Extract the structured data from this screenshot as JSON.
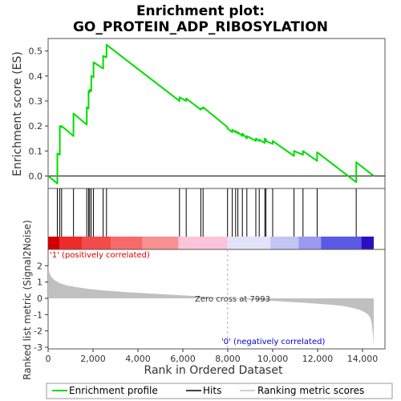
{
  "chart_data": {
    "type": "line",
    "title_line1": "Enrichment plot:",
    "title_line2": "GO_PROTEIN_ADP_RIBOSYLATION",
    "xlabel": "Rank in Ordered Dataset",
    "ylabel_top": "Enrichment score (ES)",
    "ylabel_bottom": "Ranked list metric (Signal2Noise)",
    "xlim": [
      0,
      15000
    ],
    "es_ylim": [
      -0.05,
      0.55
    ],
    "metric_ylim": [
      -3.1,
      3.0
    ],
    "x_ticks": [
      0,
      2000,
      4000,
      6000,
      8000,
      10000,
      12000,
      14000
    ],
    "x_tick_labels": [
      "0",
      "2,000",
      "4,000",
      "6,000",
      "8,000",
      "10,000",
      "12,000",
      "14,000"
    ],
    "es_ticks": [
      0.0,
      0.1,
      0.2,
      0.3,
      0.4,
      0.5
    ],
    "es_tick_labels": [
      "0.0",
      "0.1",
      "0.2",
      "0.3",
      "0.4",
      "0.5"
    ],
    "metric_ticks": [
      -3,
      -2,
      -1,
      0,
      1,
      2
    ],
    "metric_tick_labels": [
      "-3",
      "-2",
      "-1",
      "0",
      "1",
      "2"
    ],
    "n_genes": 14500,
    "zero_cross": 7993,
    "zero_cross_label": "Zero cross at 7993",
    "pos_label": "'1' (positively correlated)",
    "neg_label": "'0' (negatively correlated)",
    "hits": [
      410,
      520,
      600,
      1130,
      1720,
      1800,
      1850,
      1920,
      2020,
      2450,
      2600,
      5850,
      6150,
      6800,
      6900,
      7990,
      8200,
      8350,
      8450,
      8650,
      8850,
      9250,
      9400,
      9650,
      9700,
      10000,
      10950,
      11350,
      11980,
      13720
    ],
    "es_profile": {
      "x": [
        0,
        410,
        410,
        520,
        520,
        600,
        600,
        1130,
        1130,
        1720,
        1720,
        1800,
        1800,
        1850,
        1850,
        1920,
        1920,
        2020,
        2020,
        2450,
        2450,
        2600,
        2600,
        5850,
        5850,
        6150,
        6150,
        6800,
        6800,
        6900,
        6900,
        7990,
        7990,
        8200,
        8200,
        8350,
        8350,
        8450,
        8450,
        8650,
        8650,
        8850,
        8850,
        9250,
        9250,
        9400,
        9400,
        9650,
        9650,
        9700,
        9700,
        10000,
        10000,
        10950,
        10950,
        11350,
        11350,
        11980,
        11980,
        13720,
        13720,
        14500
      ],
      "y": [
        0.0,
        -0.03,
        0.09,
        0.085,
        0.2,
        0.195,
        0.2,
        0.16,
        0.25,
        0.205,
        0.275,
        0.27,
        0.34,
        0.335,
        0.345,
        0.34,
        0.4,
        0.395,
        0.455,
        0.43,
        0.48,
        0.475,
        0.525,
        0.3,
        0.315,
        0.3,
        0.31,
        0.265,
        0.27,
        0.27,
        0.275,
        0.195,
        0.19,
        0.175,
        0.185,
        0.175,
        0.18,
        0.17,
        0.175,
        0.16,
        0.17,
        0.15,
        0.16,
        0.14,
        0.15,
        0.14,
        0.145,
        0.132,
        0.15,
        0.147,
        0.14,
        0.128,
        0.14,
        0.08,
        0.1,
        0.085,
        0.1,
        0.06,
        0.095,
        -0.025,
        0.055,
        0.0
      ]
    },
    "metric_profile": {
      "x": [
        0,
        50,
        150,
        300,
        500,
        800,
        1200,
        1800,
        2500,
        3500,
        4500,
        5500,
        6500,
        7500,
        7993,
        8500,
        9500,
        10500,
        11500,
        12500,
        13200,
        13600,
        13900,
        14100,
        14250,
        14350,
        14420,
        14470,
        14500
      ],
      "y": [
        2.0,
        1.6,
        1.3,
        1.1,
        0.95,
        0.8,
        0.7,
        0.58,
        0.48,
        0.38,
        0.3,
        0.22,
        0.14,
        0.05,
        0.0,
        -0.05,
        -0.12,
        -0.2,
        -0.28,
        -0.38,
        -0.48,
        -0.6,
        -0.72,
        -0.85,
        -1.0,
        -1.2,
        -1.6,
        -2.3,
        -3.0
      ]
    },
    "colors": {
      "es_line": "#00dd00",
      "hit_line": "#000000",
      "metric_fill": "#c0c0c0",
      "pos_text": "#dd0000",
      "neg_text": "#0000cc",
      "zero_line": "#b0b0b0"
    },
    "heat_bar": [
      {
        "from": 0,
        "to": 500,
        "color": "#d00000"
      },
      {
        "from": 500,
        "to": 1500,
        "color": "#ee2a2a"
      },
      {
        "from": 1500,
        "to": 2800,
        "color": "#f44a4a"
      },
      {
        "from": 2800,
        "to": 4200,
        "color": "#f86a6a"
      },
      {
        "from": 4200,
        "to": 5800,
        "color": "#fa9090"
      },
      {
        "from": 5800,
        "to": 7990,
        "color": "#fcc4d8"
      },
      {
        "from": 7990,
        "to": 9900,
        "color": "#e2e2f8"
      },
      {
        "from": 9900,
        "to": 11150,
        "color": "#c4c4f4"
      },
      {
        "from": 11150,
        "to": 12150,
        "color": "#9a9af0"
      },
      {
        "from": 12150,
        "to": 13950,
        "color": "#5a5ae6"
      },
      {
        "from": 13950,
        "to": 14500,
        "color": "#2a10c0"
      }
    ],
    "legend": {
      "es": "Enrichment profile",
      "hits": "Hits",
      "metric": "Ranking metric scores"
    }
  }
}
